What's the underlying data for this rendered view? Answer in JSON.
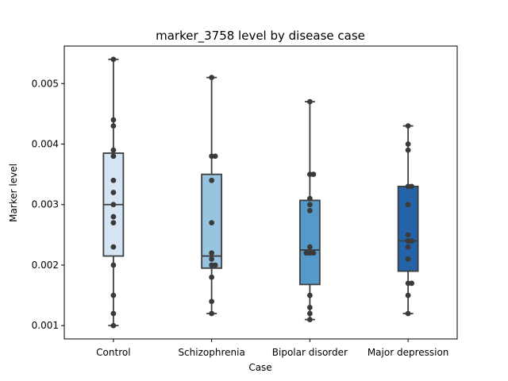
{
  "chart_data": {
    "type": "box",
    "title": "marker_3758 level by disease case",
    "xlabel": "Case",
    "ylabel": "Marker level",
    "ylim": [
      0.00078,
      0.00562
    ],
    "yticks": [
      0.001,
      0.002,
      0.003,
      0.004,
      0.005
    ],
    "ytick_labels": [
      "0.001",
      "0.002",
      "0.003",
      "0.004",
      "0.005"
    ],
    "grid": false,
    "categories": [
      "Control",
      "Schizophrenia",
      "Bipolar disorder",
      "Major depression"
    ],
    "box_colors": [
      "#d6e5f4",
      "#98c4df",
      "#5599c9",
      "#2463a8"
    ],
    "point_color": "#3a3a3a",
    "boxes": [
      {
        "whislo": 0.001,
        "q1": 0.00215,
        "med": 0.003,
        "q3": 0.00385,
        "whishi": 0.0054
      },
      {
        "whislo": 0.0012,
        "q1": 0.00195,
        "med": 0.00215,
        "q3": 0.0035,
        "whishi": 0.0051
      },
      {
        "whislo": 0.0011,
        "q1": 0.00168,
        "med": 0.00225,
        "q3": 0.00307,
        "whishi": 0.0047
      },
      {
        "whislo": 0.0012,
        "q1": 0.0019,
        "med": 0.0024,
        "q3": 0.0033,
        "whishi": 0.0043
      }
    ],
    "points": [
      [
        0.0054,
        0.0044,
        0.0043,
        0.0039,
        0.0038,
        0.0034,
        0.0032,
        0.003,
        0.0028,
        0.0027,
        0.0023,
        0.002,
        0.0015,
        0.0012,
        0.001
      ],
      [
        0.0051,
        0.0038,
        0.0038,
        0.0034,
        0.0027,
        0.0022,
        0.0021,
        0.002,
        0.002,
        0.0018,
        0.0014,
        0.0012
      ],
      [
        0.0047,
        0.0035,
        0.0035,
        0.0031,
        0.003,
        0.0029,
        0.0023,
        0.0022,
        0.0022,
        0.0022,
        0.0015,
        0.0013,
        0.0012,
        0.0011
      ],
      [
        0.0043,
        0.004,
        0.0039,
        0.0033,
        0.0033,
        0.003,
        0.0025,
        0.0024,
        0.0024,
        0.0023,
        0.0021,
        0.0017,
        0.0017,
        0.0015,
        0.0012
      ]
    ]
  }
}
